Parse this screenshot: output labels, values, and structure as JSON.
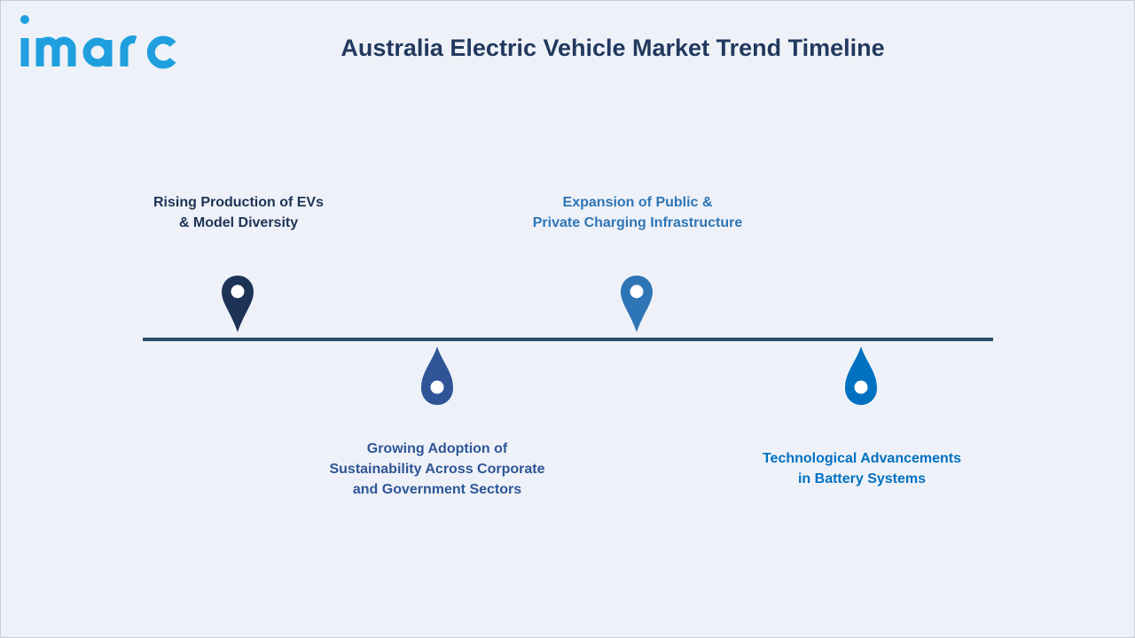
{
  "brand": {
    "logo_text": "imarc",
    "logo_icon": "imarc-logo-icon",
    "logo_color": "#1f9fde"
  },
  "header": {
    "title": "Australia Electric Vehicle Market Trend Timeline"
  },
  "timeline": {
    "line_color": "#2c4e6b",
    "events": [
      {
        "line1": "Rising Production of EVs",
        "line2": "& Model Diversity",
        "line3": "",
        "color": "#1d3356",
        "icon": "map-pin-icon"
      },
      {
        "line1": "Growing Adoption of",
        "line2": "Sustainability Across Corporate",
        "line3": "and Government Sectors",
        "color": "#2f5597",
        "icon": "drop-icon"
      },
      {
        "line1": "Expansion of Public &",
        "line2": "Private Charging Infrastructure",
        "line3": "",
        "color": "#2e75b6",
        "icon": "map-pin-icon"
      },
      {
        "line1": "Technological Advancements",
        "line2": "in Battery Systems",
        "line3": "",
        "color": "#0070c0",
        "icon": "drop-icon"
      }
    ]
  }
}
